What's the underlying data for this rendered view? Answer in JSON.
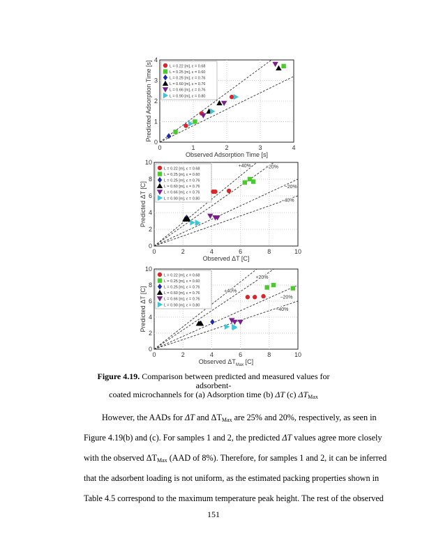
{
  "caption": {
    "label": "Figure 4.19.",
    "line1": "Comparison between predicted and measured values for adsorbent-",
    "line2a": "coated microchannels for (a) Adsorption time (b) ",
    "dT": "ΔT",
    "mid": " (c) ",
    "dTmax": "ΔT",
    "max": "Max"
  },
  "paragraph": {
    "l1a": "However, the AADs for ",
    "l1b": "ΔT",
    "l1c": " and ΔT",
    "l1d": "Max",
    "l1e": " are 25% and 20%, respectively, as seen in",
    "l2a": "Figure 4.19(b) and (c). For samples 1 and 2, the predicted ",
    "l2b": "ΔT",
    "l2c": " values agree more closely",
    "l3a": "with the observed ΔT",
    "l3b": "Max",
    "l3c": " (AAD of 8%). Therefore, for samples 1 and 2, it can be inferred",
    "l4": "that the adsorbent loading is not uniform, as the estimated packing properties shown in",
    "l5": "Table 4.5 correspond to the maximum temperature peak height. The rest of the observed"
  },
  "page_number": "151",
  "chart_data": [
    {
      "type": "scatter",
      "xlabel": "Observed Adsorption Time [s]",
      "ylabel": "Predicted Adsorption Time [s]",
      "xlim": [
        0,
        4
      ],
      "ylim": [
        0,
        4
      ],
      "xticks": [
        "0",
        "1",
        "2",
        "3",
        "4"
      ],
      "yticks": [
        "0",
        "1",
        "2",
        "3",
        "4"
      ],
      "grid": true,
      "legend": "top-left",
      "ref_lines": [
        {
          "slope": 1.2,
          "label": ""
        },
        {
          "slope": 0.8,
          "label": ""
        }
      ],
      "series": [
        {
          "name": "L = 0.22 [m],   ε = 0.68",
          "color": "#d9262b",
          "marker": "circle",
          "points": [
            [
              0.78,
              0.8
            ],
            [
              1.25,
              1.4
            ],
            [
              2.15,
              2.2
            ]
          ]
        },
        {
          "name": "L = 0.25 [m],   ε = 0.60",
          "color": "#4cc92e",
          "marker": "square",
          "points": [
            [
              0.47,
              0.5
            ],
            [
              1.05,
              1.0
            ],
            [
              3.7,
              3.7
            ]
          ]
        },
        {
          "name": "L = 0.25 [m],   ε = 0.76",
          "color": "#1f2aa8",
          "marker": "diamond",
          "points": [
            [
              0.27,
              0.3
            ]
          ]
        },
        {
          "name": "L = 0.60 [m],   ε = 0.76",
          "color": "#000000",
          "marker": "triangle-up",
          "points": [
            [
              1.47,
              1.5
            ],
            [
              1.78,
              1.9
            ],
            [
              3.55,
              3.6
            ]
          ]
        },
        {
          "name": "L = 0.66 [m],   ε = 0.76",
          "color": "#7a1f8a",
          "marker": "triangle-down",
          "points": [
            [
              1.3,
              1.3
            ],
            [
              1.92,
              1.9
            ],
            [
              3.45,
              3.8
            ]
          ]
        },
        {
          "name": "L = 0.90 [m],   ε = 0.80",
          "color": "#3fc6d6",
          "marker": "triangle-right",
          "points": [
            [
              0.92,
              0.9
            ],
            [
              1.57,
              1.5
            ],
            [
              2.27,
              2.2
            ]
          ]
        }
      ]
    },
    {
      "type": "scatter",
      "xlabel": "Observed   ΔT [C]",
      "ylabel": "Predicted    ΔT [C]",
      "xlim": [
        0,
        10
      ],
      "ylim": [
        0,
        10
      ],
      "xticks": [
        "0",
        "2",
        "4",
        "6",
        "8",
        "10"
      ],
      "yticks": [
        "0",
        "2",
        "4",
        "6",
        "8",
        "10"
      ],
      "grid": true,
      "legend": "top-left",
      "ref_lines": [
        {
          "slope": 1.4,
          "label": "+40%",
          "at": [
            6.3,
            9.4
          ]
        },
        {
          "slope": 1.2,
          "label": "+20%",
          "at": [
            8.2,
            9.3
          ]
        },
        {
          "slope": 0.8,
          "label": "−20%",
          "at": [
            9.5,
            6.9
          ]
        },
        {
          "slope": 0.6,
          "label": "−40%",
          "at": [
            9.3,
            5.3
          ]
        }
      ],
      "series": [
        {
          "name": "L = 0.22 [m],   ε = 0.68",
          "color": "#d9262b",
          "marker": "circle",
          "points": [
            [
              4.1,
              6.5
            ],
            [
              4.25,
              6.5
            ],
            [
              5.2,
              6.6
            ]
          ]
        },
        {
          "name": "L = 0.25 [m],   ε = 0.60",
          "color": "#4cc92e",
          "marker": "square",
          "points": [
            [
              6.3,
              7.6
            ],
            [
              6.65,
              8.0
            ],
            [
              6.9,
              7.7
            ]
          ]
        },
        {
          "name": "L = 0.25 [m],   ε = 0.76",
          "color": "#1f2aa8",
          "marker": "diamond",
          "points": [
            [
              2.25,
              3.4
            ]
          ]
        },
        {
          "name": "L = 0.60 [m],   ε = 0.76",
          "color": "#000000",
          "marker": "triangle-up",
          "points": [
            [
              2.15,
              3.2
            ],
            [
              2.3,
              3.3
            ],
            [
              2.35,
              3.2
            ]
          ]
        },
        {
          "name": "L = 0.66 [m],   ε = 0.76",
          "color": "#7a1f8a",
          "marker": "triangle-down",
          "points": [
            [
              3.9,
              3.6
            ],
            [
              4.25,
              3.4
            ],
            [
              4.4,
              3.4
            ]
          ]
        },
        {
          "name": "L = 0.90 [m],   ε = 0.80",
          "color": "#3fc6d6",
          "marker": "triangle-right",
          "points": [
            [
              2.65,
              2.8
            ],
            [
              3.0,
              2.8
            ],
            [
              3.05,
              2.75
            ]
          ]
        }
      ]
    },
    {
      "type": "scatter",
      "xlabel": "Observed   ΔT",
      "xlabel_sub": "Max",
      "xlabel_unit": " [C]",
      "ylabel": "Predicted    ΔT [C]",
      "xlim": [
        0,
        10
      ],
      "ylim": [
        0,
        10
      ],
      "xticks": [
        "0",
        "2",
        "4",
        "6",
        "8",
        "10"
      ],
      "yticks": [
        "0",
        "2",
        "4",
        "6",
        "8",
        "10"
      ],
      "grid": true,
      "legend": "top-left",
      "ref_lines": [
        {
          "slope": 1.4,
          "label": "+40%",
          "at": [
            5.3,
            7.1
          ]
        },
        {
          "slope": 1.2,
          "label": "+20%",
          "at": [
            7.5,
            8.8
          ]
        },
        {
          "slope": 0.8,
          "label": "−20%",
          "at": [
            9.2,
            6.3
          ]
        },
        {
          "slope": 0.6,
          "label": "−40%",
          "at": [
            8.9,
            4.8
          ]
        }
      ],
      "series": [
        {
          "name": "L = 0.22 [m],   ε = 0.68",
          "color": "#d9262b",
          "marker": "circle",
          "points": [
            [
              6.5,
              6.5
            ],
            [
              7.0,
              6.5
            ],
            [
              7.6,
              6.6
            ]
          ]
        },
        {
          "name": "L = 0.25 [m],   ε = 0.60",
          "color": "#4cc92e",
          "marker": "square",
          "points": [
            [
              7.85,
              7.7
            ],
            [
              8.3,
              8.0
            ],
            [
              9.65,
              7.6
            ]
          ]
        },
        {
          "name": "L = 0.25 [m],   ε = 0.76",
          "color": "#1f2aa8",
          "marker": "diamond",
          "points": [
            [
              4.05,
              3.4
            ]
          ]
        },
        {
          "name": "L = 0.60 [m],   ε = 0.76",
          "color": "#000000",
          "marker": "triangle-up",
          "points": [
            [
              3.1,
              3.2
            ],
            [
              3.2,
              3.2
            ],
            [
              3.25,
              3.2
            ]
          ]
        },
        {
          "name": "L = 0.66 [m],   ε = 0.76",
          "color": "#7a1f8a",
          "marker": "triangle-down",
          "points": [
            [
              5.4,
              3.6
            ],
            [
              5.6,
              3.4
            ],
            [
              6.0,
              3.4
            ]
          ]
        },
        {
          "name": "L = 0.90 [m],   ε = 0.80",
          "color": "#3fc6d6",
          "marker": "triangle-right",
          "points": [
            [
              5.05,
              2.8
            ],
            [
              5.55,
              2.8
            ],
            [
              5.6,
              2.7
            ]
          ]
        }
      ]
    }
  ]
}
